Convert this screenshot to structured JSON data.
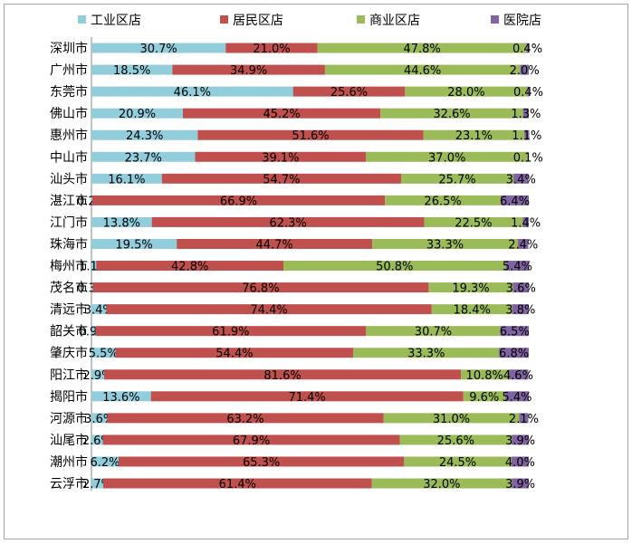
{
  "chart_data": {
    "type": "bar",
    "orientation": "horizontal",
    "stacked": true,
    "percent": true,
    "legend_position": "top",
    "grid": false,
    "xlim": [
      0,
      100
    ],
    "categories": [
      "深圳市",
      "广州市",
      "东莞市",
      "佛山市",
      "惠州市",
      "中山市",
      "汕头市",
      "湛江市",
      "江门市",
      "珠海市",
      "梅州市",
      "茂名市",
      "清远市",
      "韶关市",
      "肇庆市",
      "阳江市",
      "揭阳市",
      "河源市",
      "汕尾市",
      "潮州市",
      "云浮市"
    ],
    "series": [
      {
        "name": "工业区店",
        "color": "#92cddc",
        "values": [
          30.7,
          18.5,
          46.1,
          20.9,
          24.3,
          23.7,
          16.1,
          0.2,
          13.8,
          19.5,
          1.1,
          0.3,
          3.4,
          0.9,
          5.5,
          2.9,
          13.6,
          3.6,
          2.6,
          6.2,
          2.7
        ],
        "labels": [
          "30.7%",
          "18.5%",
          "46.1%",
          "20.9%",
          "24.3%",
          "23.7%",
          "16.1%",
          "0.2%",
          "13.8%",
          "19.5%",
          "1.1%",
          "0.3%",
          "3.4%",
          "0.9%",
          "5.5%",
          "2.9%",
          "13.6%",
          "3.6%",
          "2.6%",
          "6.2%",
          "2.7%"
        ]
      },
      {
        "name": "居民区店",
        "color": "#c0504d",
        "values": [
          21.0,
          34.9,
          25.6,
          45.2,
          51.6,
          39.1,
          54.7,
          66.9,
          62.3,
          44.7,
          42.8,
          76.8,
          74.4,
          61.9,
          54.4,
          81.6,
          71.4,
          63.2,
          67.9,
          65.3,
          61.4
        ],
        "labels": [
          "21.0%",
          "34.9%",
          "25.6%",
          "45.2%",
          "51.6%",
          "39.1%",
          "54.7%",
          "66.9%",
          "62.3%",
          "44.7%",
          "42.8%",
          "76.8%",
          "74.4%",
          "61.9%",
          "54.4%",
          "81.6%",
          "71.4%",
          "63.2%",
          "67.9%",
          "65.3%",
          "61.4%"
        ]
      },
      {
        "name": "商业区店",
        "color": "#9bbb59",
        "values": [
          47.8,
          44.6,
          28.0,
          32.6,
          23.1,
          37.0,
          25.7,
          26.5,
          22.5,
          33.3,
          50.8,
          19.3,
          18.4,
          30.7,
          33.3,
          10.8,
          9.6,
          31.0,
          25.6,
          24.5,
          32.0
        ],
        "labels": [
          "47.8%",
          "44.6%",
          "28.0%",
          "32.6%",
          "23.1%",
          "37.0%",
          "25.7%",
          "26.5%",
          "22.5%",
          "33.3%",
          "50.8%",
          "19.3%",
          "18.4%",
          "30.7%",
          "33.3%",
          "10.8%",
          "9.6%",
          "31.0%",
          "25.6%",
          "24.5%",
          "32.0%"
        ]
      },
      {
        "name": "医院店",
        "color": "#8064a2",
        "values": [
          0.4,
          2.0,
          0.4,
          1.3,
          1.1,
          0.1,
          3.4,
          6.4,
          1.4,
          2.4,
          5.4,
          3.6,
          3.8,
          6.5,
          6.8,
          4.6,
          5.4,
          2.1,
          3.9,
          4.0,
          3.9
        ],
        "labels": [
          "0.4%",
          "2.0%",
          "0.4%",
          "1.3%",
          "1.1%",
          "0.1%",
          "3.4%",
          "6.4%",
          "1.4%",
          "2.4%",
          "5.4%",
          "3.6%",
          "3.8%",
          "6.5%",
          "6.8%",
          "4.6%",
          "5.4%",
          "2.1%",
          "3.9%",
          "4.0%",
          "3.9%"
        ]
      }
    ]
  }
}
